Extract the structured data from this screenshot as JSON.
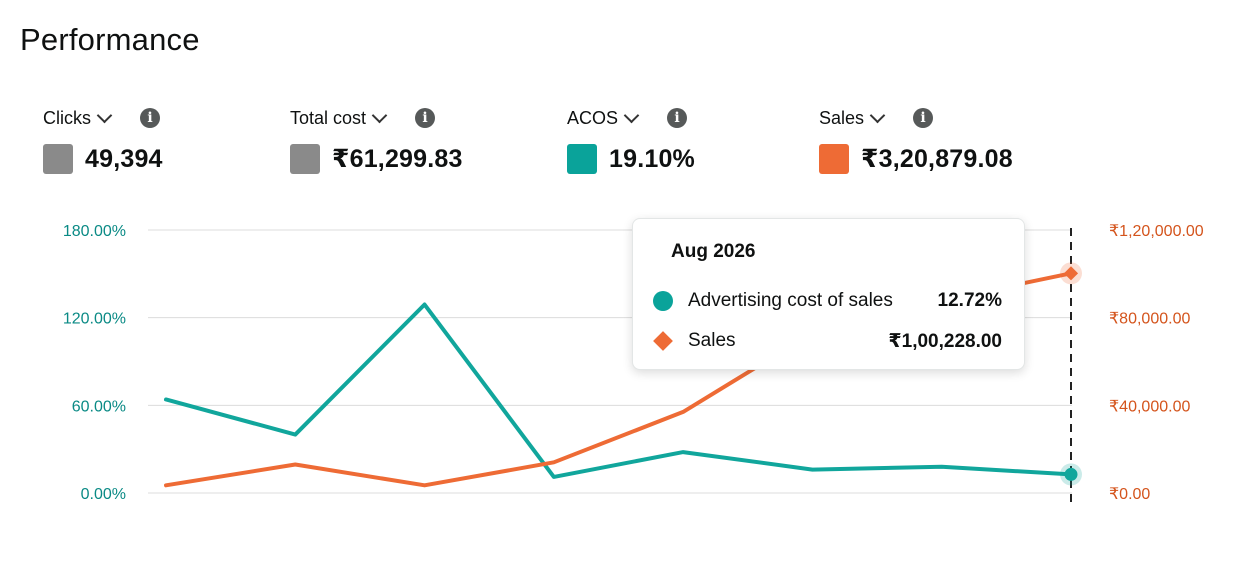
{
  "page": {
    "title": "Performance"
  },
  "metrics": [
    {
      "label": "Clicks",
      "value": "49,394",
      "color": "#8a8a8a"
    },
    {
      "label": "Total cost",
      "value": "₹61,299.83",
      "color": "#8a8a8a"
    },
    {
      "label": "ACOS",
      "value": "19.10%",
      "color": "#0aa39a"
    },
    {
      "label": "Sales",
      "value": "₹3,20,879.08",
      "color": "#ee6b35"
    }
  ],
  "tooltip": {
    "title": "Aug 2026",
    "rows": [
      {
        "name": "Advertising cost of sales",
        "value": "12.72%",
        "color": "#0aa39a"
      },
      {
        "name": "Sales",
        "value": "₹1,00,228.00",
        "color": "#ee6b35"
      }
    ]
  },
  "chart_data": {
    "type": "line",
    "title": "",
    "x": [
      "",
      "",
      "",
      "",
      "",
      "",
      "",
      "Aug 2026"
    ],
    "y_left": {
      "ticks": [
        "0.00%",
        "60.00%",
        "120.00%",
        "180.00%"
      ],
      "range": [
        0,
        180
      ],
      "color": "#0a8a85"
    },
    "y_right": {
      "ticks": [
        "₹0.00",
        "₹40,000.00",
        "₹80,000.00",
        "₹1,20,000.00"
      ],
      "range": [
        0,
        120000
      ],
      "color": "#d4541c"
    },
    "series": [
      {
        "name": "Advertising cost of sales",
        "axis": "left",
        "color": "#11a69c",
        "values": [
          64,
          40,
          129,
          11,
          28,
          16,
          18,
          12.72
        ]
      },
      {
        "name": "Sales",
        "axis": "right",
        "color": "#ee6b35",
        "values": [
          3500,
          13000,
          3500,
          14000,
          37000,
          73000,
          88000,
          100228
        ]
      }
    ],
    "grid": true,
    "hover_index": 7
  }
}
